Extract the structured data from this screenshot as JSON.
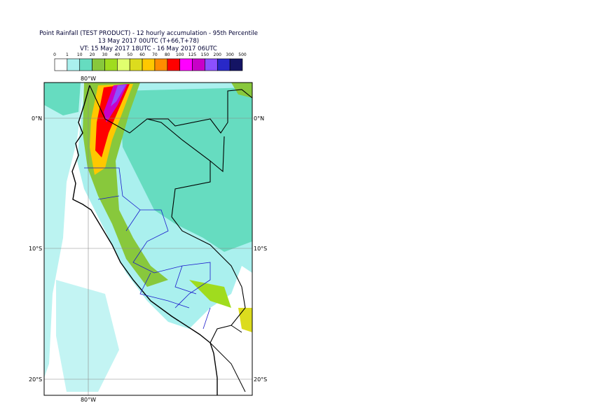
{
  "header": {
    "title": "Point Rainfall (TEST PRODUCT) - 12 hourly accumulation - 95th Percentile",
    "run": "13 May 2017 00UTC (T+66,T+78)",
    "valid": "VT: 15 May 2017 18UTC - 16 May 2017 06UTC"
  },
  "legend": {
    "levels": [
      "0",
      "1",
      "10",
      "20",
      "30",
      "40",
      "50",
      "60",
      "70",
      "80",
      "100",
      "125",
      "150",
      "200",
      "300",
      "500"
    ],
    "colors": [
      "#ffffff",
      "#aaf0ee",
      "#66dcc0",
      "#88c83c",
      "#a0dc1e",
      "#e0ff6e",
      "#dcdc1e",
      "#ffc800",
      "#ff8c00",
      "#ff0000",
      "#ff00ff",
      "#c800c8",
      "#8c50ff",
      "#2828c8",
      "#141464"
    ]
  },
  "map": {
    "lat_labels": [
      "0°N",
      "10°S",
      "20°S"
    ],
    "lon_label": "80°W"
  }
}
